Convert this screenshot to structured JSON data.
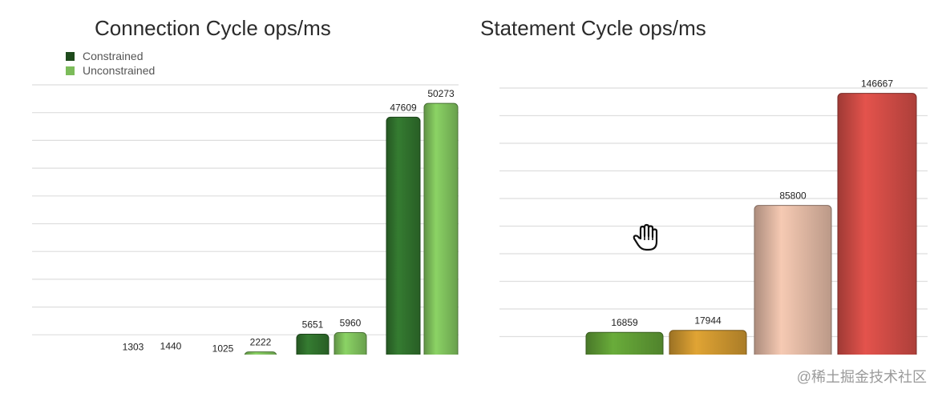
{
  "chart_data": [
    {
      "type": "bar",
      "title": "Connection Cycle ops/ms",
      "legend": {
        "position": "top-left",
        "entries": [
          "Constrained",
          "Unconstrained"
        ]
      },
      "grid": true,
      "ylim": [
        0,
        52000
      ],
      "series": [
        {
          "name": "Constrained",
          "values": [
            null,
            1303,
            1025,
            5651,
            47609
          ]
        },
        {
          "name": "Unconstrained",
          "values": [
            null,
            1440,
            2222,
            5960,
            50273
          ]
        }
      ],
      "colors": {
        "Constrained": "#2f6f2c",
        "Unconstrained": "#7cbc5a"
      }
    },
    {
      "type": "bar",
      "title": "Statement Cycle ops/ms",
      "grid": true,
      "ylim": [
        0,
        150000
      ],
      "values": [
        16859,
        17944,
        85800,
        146667
      ],
      "colors": [
        "#5e9a34",
        "#c8922e",
        "#dcb4a0",
        "#cc4a44"
      ]
    }
  ],
  "watermark": "@稀土掘金技术社区",
  "cursor_icon": "hand-pointer-icon"
}
